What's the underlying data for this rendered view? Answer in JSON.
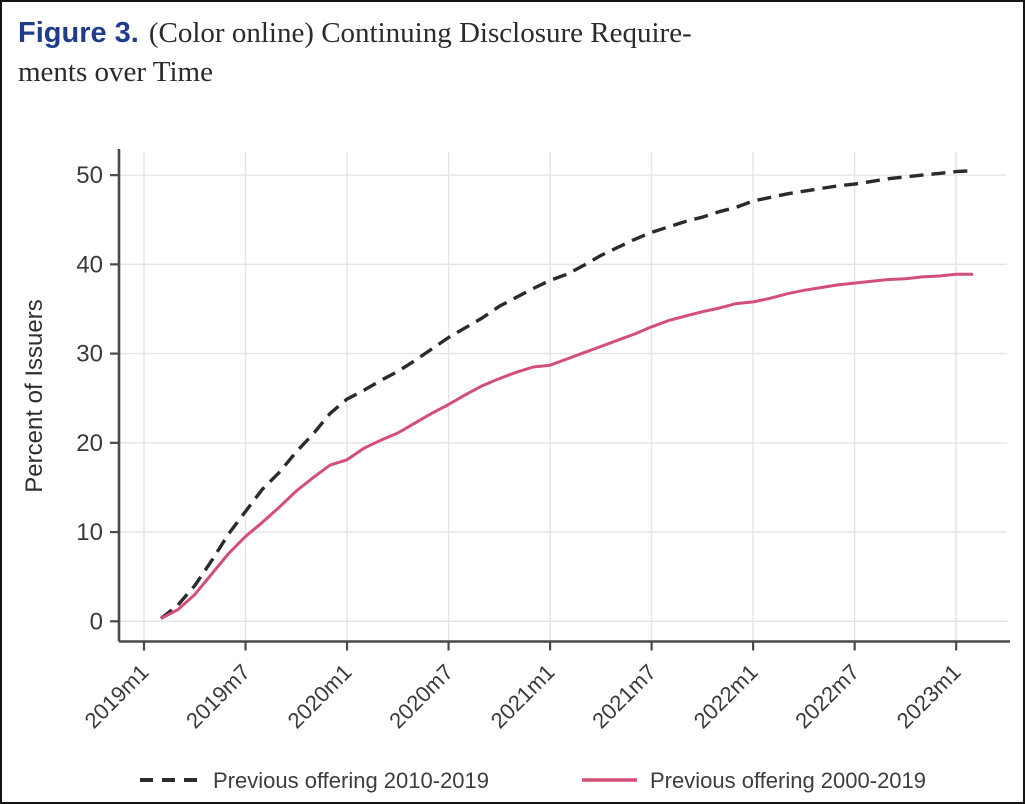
{
  "figure": {
    "label": "Figure 3.",
    "title_line1": "(Color online) Continuing Disclosure Require-",
    "title_line2": "ments over Time"
  },
  "chart_data": {
    "type": "line",
    "title": "Figure 3. (Color online) Continuing Disclosure Requirements over Time",
    "xlabel": "",
    "ylabel": "Percent of Issuers",
    "ylim": [
      0,
      50
    ],
    "yticks": [
      0,
      10,
      20,
      30,
      40,
      50
    ],
    "x_unit": "months since 2019m1",
    "xtick_months": [
      0,
      6,
      12,
      18,
      24,
      30,
      36,
      42,
      48
    ],
    "xtick_labels": [
      "2019m1",
      "2019m7",
      "2020m1",
      "2020m7",
      "2021m1",
      "2021m7",
      "2022m1",
      "2022m7",
      "2023m1"
    ],
    "grid": true,
    "legend_position": "bottom",
    "series": [
      {
        "id": "prev-2010-2019",
        "name": "Previous offering 2010-2019",
        "color": "#2b2b2b",
        "style": "dashed",
        "width": 3.4,
        "start_month": 1,
        "values": [
          0.3,
          1.8,
          4.0,
          6.8,
          9.8,
          12.3,
          14.8,
          16.7,
          19.0,
          21.0,
          23.3,
          24.9,
          25.9,
          27.0,
          28.0,
          29.2,
          30.5,
          31.8,
          32.9,
          34.0,
          35.3,
          36.3,
          37.3,
          38.2,
          38.9,
          39.9,
          41.0,
          41.9,
          42.8,
          43.6,
          44.2,
          44.8,
          45.3,
          45.9,
          46.4,
          47.1,
          47.5,
          47.9,
          48.2,
          48.5,
          48.8,
          49.0,
          49.3,
          49.6,
          49.8,
          50.0,
          50.2,
          50.4,
          50.5
        ]
      },
      {
        "id": "prev-2000-2019",
        "name": "Previous offering 2000-2019",
        "color": "#d34f77",
        "style": "solid",
        "width": 3.0,
        "start_month": 1,
        "values": [
          0.3,
          1.3,
          3.0,
          5.3,
          7.6,
          9.5,
          11.1,
          12.8,
          14.6,
          16.1,
          17.5,
          18.1,
          19.4,
          20.3,
          21.1,
          22.2,
          23.3,
          24.3,
          25.4,
          26.4,
          27.2,
          27.9,
          28.5,
          28.7,
          29.4,
          30.1,
          30.8,
          31.5,
          32.2,
          33.0,
          33.7,
          34.2,
          34.7,
          35.1,
          35.6,
          35.8,
          36.2,
          36.7,
          37.1,
          37.4,
          37.7,
          37.9,
          38.1,
          38.3,
          38.4,
          38.6,
          38.7,
          38.9,
          38.9
        ]
      }
    ]
  }
}
